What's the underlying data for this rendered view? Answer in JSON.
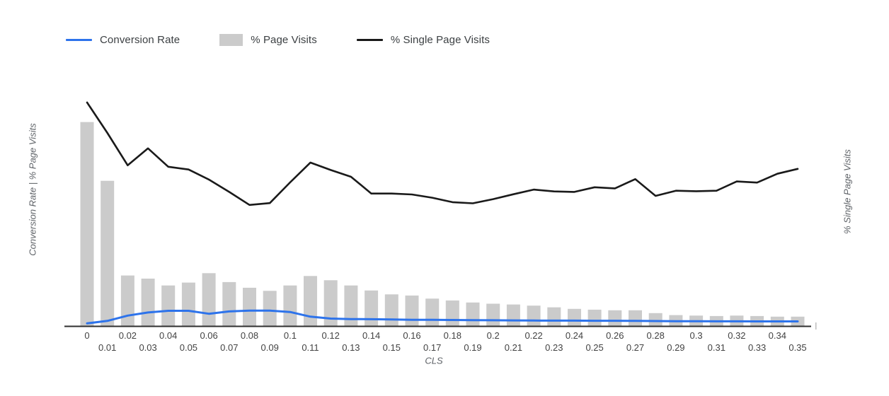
{
  "page": {
    "background": "#ffffff"
  },
  "legend": {
    "items": [
      {
        "label": "Conversion Rate",
        "swatch": "line",
        "color": "#2d73eb"
      },
      {
        "label": "% Page Visits",
        "swatch": "box",
        "color": "#cbcbcb"
      },
      {
        "label": "% Single Page Visits",
        "swatch": "line",
        "color": "#1a1a1a"
      }
    ]
  },
  "axes": {
    "left_title": "Conversion Rate | % Page Visits",
    "right_title": "% Single Page Visits",
    "x_title": "CLS"
  },
  "chart_data": {
    "type": "combo-bar-line",
    "title": "",
    "xlabel": "CLS",
    "ylabel_left": "Conversion Rate | % Page Visits",
    "ylabel_right": "% Single Page Visits",
    "grid": false,
    "legend_position": "top-left",
    "left_axis_range": [
      0,
      18
    ],
    "right_axis_range": [
      0,
      100
    ],
    "categories": [
      "0",
      "0.01",
      "0.02",
      "0.03",
      "0.04",
      "0.05",
      "0.06",
      "0.07",
      "0.08",
      "0.09",
      "0.1",
      "0.11",
      "0.12",
      "0.13",
      "0.14",
      "0.15",
      "0.16",
      "0.17",
      "0.18",
      "0.19",
      "0.2",
      "0.21",
      "0.22",
      "0.23",
      "0.24",
      "0.25",
      "0.26",
      "0.27",
      "0.28",
      "0.29",
      "0.3",
      "0.31",
      "0.32",
      "0.33",
      "0.34",
      "0.35"
    ],
    "series": [
      {
        "name": "% Page Visits",
        "type": "bar",
        "axis": "left",
        "color": "#cbcbcb",
        "values": [
          15.78,
          11.24,
          3.93,
          3.69,
          3.16,
          3.38,
          4.11,
          3.42,
          2.98,
          2.74,
          3.16,
          3.89,
          3.56,
          3.16,
          2.77,
          2.47,
          2.38,
          2.14,
          2.0,
          1.84,
          1.75,
          1.69,
          1.6,
          1.47,
          1.35,
          1.29,
          1.24,
          1.24,
          1.02,
          0.87,
          0.83,
          0.8,
          0.83,
          0.8,
          0.75,
          0.75
        ]
      },
      {
        "name": "Conversion Rate",
        "type": "line",
        "axis": "left",
        "color": "#2d73eb",
        "values": [
          0.23,
          0.42,
          0.83,
          1.07,
          1.2,
          1.2,
          0.97,
          1.15,
          1.22,
          1.22,
          1.11,
          0.75,
          0.6,
          0.56,
          0.55,
          0.53,
          0.51,
          0.5,
          0.49,
          0.48,
          0.47,
          0.46,
          0.45,
          0.44,
          0.44,
          0.43,
          0.43,
          0.42,
          0.41,
          0.4,
          0.4,
          0.39,
          0.39,
          0.38,
          0.38,
          0.38
        ]
      },
      {
        "name": "% Single Page Visits",
        "type": "line",
        "axis": "right",
        "color": "#1a1a1a",
        "values": [
          96.1,
          83.0,
          69.1,
          76.4,
          68.5,
          67.3,
          63.0,
          57.7,
          52.1,
          52.9,
          61.8,
          70.3,
          67.1,
          64.2,
          57.0,
          57.0,
          56.6,
          55.2,
          53.3,
          52.8,
          54.6,
          56.7,
          58.7,
          57.9,
          57.7,
          59.7,
          59.2,
          63.2,
          56.0,
          58.2,
          58.0,
          58.2,
          62.2,
          61.7,
          65.5,
          67.6
        ]
      }
    ]
  }
}
